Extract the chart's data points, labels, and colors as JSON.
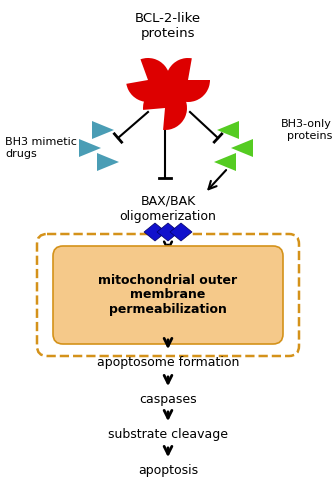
{
  "title": "BCL-2-like\nproteins",
  "bg_color": "#ffffff",
  "bcl2_color": "#dd0000",
  "bh3_mimetic_color": "#4a9db5",
  "bh3_only_color": "#55cc22",
  "bax_color": "#1111cc",
  "mito_fill": "#f5c98a",
  "mito_border": "#d4921a",
  "mito_text": "mitochondrial outer\nmembrane\npermeabilization",
  "mito_text_color": "#000000",
  "arrow_color": "#000000",
  "text_color": "#000000",
  "flow_labels": [
    "apoptosome formation",
    "caspases",
    "substrate cleavage",
    "apoptosis"
  ],
  "bh3m_label": "BH3 mimetic\ndrugs",
  "bh3o_label": "BH3-only\nproteins",
  "baxbak_label": "BAX/BAK\noligomerization"
}
